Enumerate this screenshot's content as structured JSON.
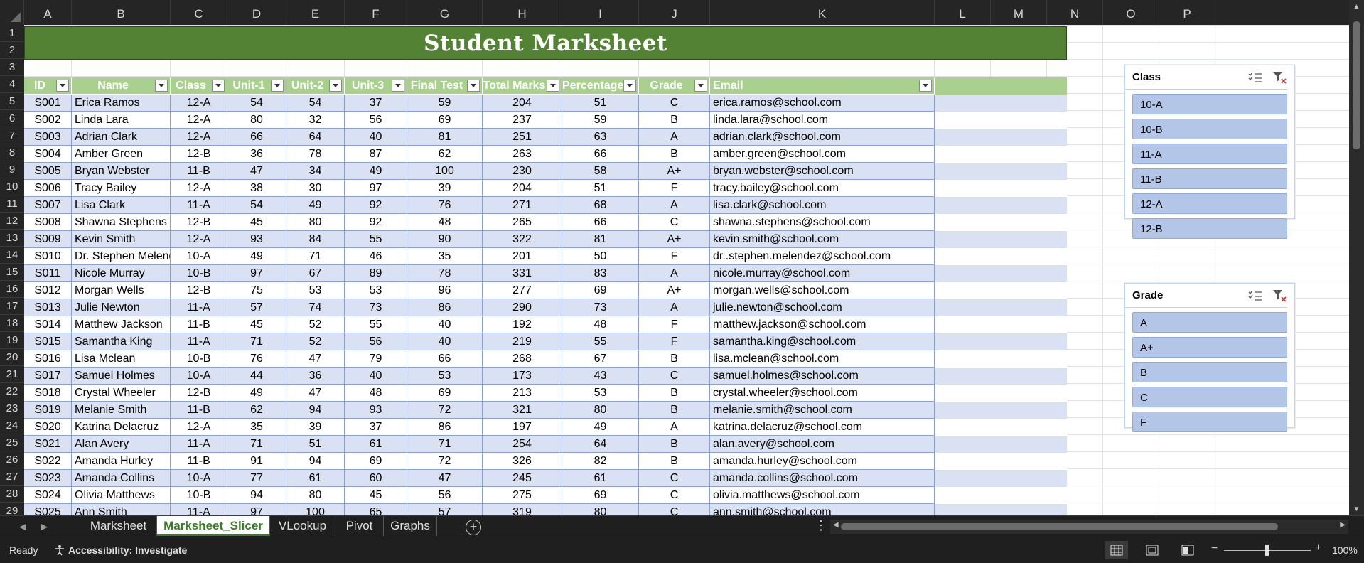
{
  "columns": [
    "A",
    "B",
    "C",
    "D",
    "E",
    "F",
    "G",
    "H",
    "I",
    "J",
    "K",
    "L",
    "M",
    "N",
    "O",
    "P"
  ],
  "rows": [
    "1",
    "2",
    "3",
    "4",
    "5",
    "6",
    "7",
    "8",
    "9",
    "10",
    "11",
    "12",
    "13",
    "14",
    "15",
    "16",
    "17",
    "18",
    "19",
    "20",
    "21",
    "22",
    "23",
    "24",
    "25",
    "26",
    "27",
    "28",
    "29"
  ],
  "title": "Student Marksheet",
  "table": {
    "headers": [
      "ID",
      "Name",
      "Class",
      "Unit-1",
      "Unit-2",
      "Unit-3",
      "Final Test",
      "Total Marks",
      "Percentage",
      "Grade",
      "Email"
    ],
    "rows": [
      [
        "S001",
        "Erica Ramos",
        "12-A",
        "54",
        "54",
        "37",
        "59",
        "204",
        "51",
        "C",
        "erica.ramos@school.com"
      ],
      [
        "S002",
        "Linda Lara",
        "12-A",
        "80",
        "32",
        "56",
        "69",
        "237",
        "59",
        "B",
        "linda.lara@school.com"
      ],
      [
        "S003",
        "Adrian Clark",
        "12-A",
        "66",
        "64",
        "40",
        "81",
        "251",
        "63",
        "A",
        "adrian.clark@school.com"
      ],
      [
        "S004",
        "Amber Green",
        "12-B",
        "36",
        "78",
        "87",
        "62",
        "263",
        "66",
        "B",
        "amber.green@school.com"
      ],
      [
        "S005",
        "Bryan Webster",
        "11-B",
        "47",
        "34",
        "49",
        "100",
        "230",
        "58",
        "A+",
        "bryan.webster@school.com"
      ],
      [
        "S006",
        "Tracy Bailey",
        "12-A",
        "38",
        "30",
        "97",
        "39",
        "204",
        "51",
        "F",
        "tracy.bailey@school.com"
      ],
      [
        "S007",
        "Lisa Clark",
        "11-A",
        "54",
        "49",
        "92",
        "76",
        "271",
        "68",
        "A",
        "lisa.clark@school.com"
      ],
      [
        "S008",
        "Shawna Stephens",
        "12-B",
        "45",
        "80",
        "92",
        "48",
        "265",
        "66",
        "C",
        "shawna.stephens@school.com"
      ],
      [
        "S009",
        "Kevin Smith",
        "12-A",
        "93",
        "84",
        "55",
        "90",
        "322",
        "81",
        "A+",
        "kevin.smith@school.com"
      ],
      [
        "S010",
        "Dr. Stephen Melendez",
        "10-A",
        "49",
        "71",
        "46",
        "35",
        "201",
        "50",
        "F",
        "dr..stephen.melendez@school.com"
      ],
      [
        "S011",
        "Nicole Murray",
        "10-B",
        "97",
        "67",
        "89",
        "78",
        "331",
        "83",
        "A",
        "nicole.murray@school.com"
      ],
      [
        "S012",
        "Morgan Wells",
        "12-B",
        "75",
        "53",
        "53",
        "96",
        "277",
        "69",
        "A+",
        "morgan.wells@school.com"
      ],
      [
        "S013",
        "Julie Newton",
        "11-A",
        "57",
        "74",
        "73",
        "86",
        "290",
        "73",
        "A",
        "julie.newton@school.com"
      ],
      [
        "S014",
        "Matthew Jackson",
        "11-B",
        "45",
        "52",
        "55",
        "40",
        "192",
        "48",
        "F",
        "matthew.jackson@school.com"
      ],
      [
        "S015",
        "Samantha King",
        "11-A",
        "71",
        "52",
        "56",
        "40",
        "219",
        "55",
        "F",
        "samantha.king@school.com"
      ],
      [
        "S016",
        "Lisa Mclean",
        "10-B",
        "76",
        "47",
        "79",
        "66",
        "268",
        "67",
        "B",
        "lisa.mclean@school.com"
      ],
      [
        "S017",
        "Samuel Holmes",
        "10-A",
        "44",
        "36",
        "40",
        "53",
        "173",
        "43",
        "C",
        "samuel.holmes@school.com"
      ],
      [
        "S018",
        "Crystal Wheeler",
        "12-B",
        "49",
        "47",
        "48",
        "69",
        "213",
        "53",
        "B",
        "crystal.wheeler@school.com"
      ],
      [
        "S019",
        "Melanie Smith",
        "11-B",
        "62",
        "94",
        "93",
        "72",
        "321",
        "80",
        "B",
        "melanie.smith@school.com"
      ],
      [
        "S020",
        "Katrina Delacruz",
        "12-A",
        "35",
        "39",
        "37",
        "86",
        "197",
        "49",
        "A",
        "katrina.delacruz@school.com"
      ],
      [
        "S021",
        "Alan Avery",
        "11-A",
        "71",
        "51",
        "61",
        "71",
        "254",
        "64",
        "B",
        "alan.avery@school.com"
      ],
      [
        "S022",
        "Amanda Hurley",
        "11-B",
        "91",
        "94",
        "69",
        "72",
        "326",
        "82",
        "B",
        "amanda.hurley@school.com"
      ],
      [
        "S023",
        "Amanda Collins",
        "10-A",
        "77",
        "61",
        "60",
        "47",
        "245",
        "61",
        "C",
        "amanda.collins@school.com"
      ],
      [
        "S024",
        "Olivia Matthews",
        "10-B",
        "94",
        "80",
        "45",
        "56",
        "275",
        "69",
        "C",
        "olivia.matthews@school.com"
      ],
      [
        "S025",
        "Ann Smith",
        "11-A",
        "97",
        "100",
        "65",
        "57",
        "319",
        "80",
        "C",
        "ann.smith@school.com"
      ]
    ]
  },
  "slicers": {
    "class": {
      "title": "Class",
      "items": [
        "10-A",
        "10-B",
        "11-A",
        "11-B",
        "12-A",
        "12-B"
      ]
    },
    "grade": {
      "title": "Grade",
      "items": [
        "A",
        "A+",
        "B",
        "C",
        "F"
      ]
    }
  },
  "sheet_tabs": {
    "tabs": [
      "Marksheet",
      "Marksheet_Slicer",
      "VLookup",
      "Pivot",
      "Graphs"
    ],
    "active": "Marksheet_Slicer"
  },
  "status": {
    "ready": "Ready",
    "accessibility": "Accessibility: Investigate",
    "zoom": "100%"
  },
  "colors": {
    "title_fill": "#548235",
    "header_fill": "#a9d08e",
    "band_fill": "#d9e1f2",
    "slicer_item_fill": "#b4c6e7",
    "active_tab_text": "#3a7d29"
  }
}
